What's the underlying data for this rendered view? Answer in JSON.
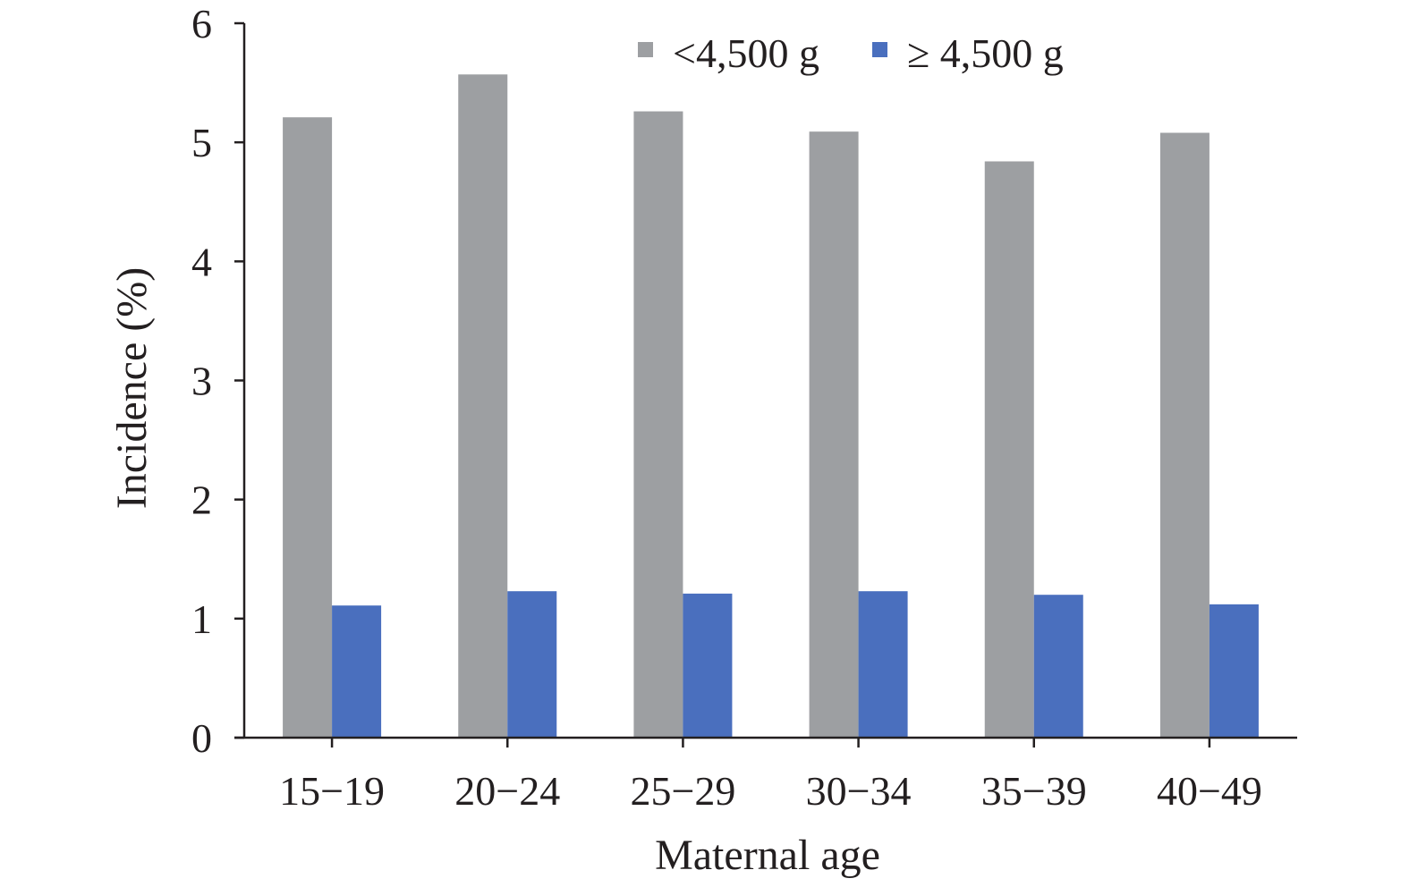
{
  "chart_data": {
    "type": "bar",
    "title": "",
    "xlabel": "Maternal age",
    "ylabel": "Incidence (%)",
    "categories": [
      "15−19",
      "20−24",
      "25−29",
      "30−34",
      "35−39",
      "40−49"
    ],
    "series": [
      {
        "name": "<4,500 g",
        "color": "#9d9fa2",
        "values": [
          5.21,
          5.57,
          5.26,
          5.09,
          4.84,
          5.08
        ]
      },
      {
        "name": "≥ 4,500 g",
        "color": "#4a6fbe",
        "values": [
          1.11,
          1.23,
          1.21,
          1.23,
          1.2,
          1.12
        ]
      }
    ],
    "ylim": [
      0,
      6
    ],
    "yticks": [
      0,
      1,
      2,
      3,
      4,
      5,
      6
    ],
    "grid": false,
    "legend_position": "top-right"
  }
}
